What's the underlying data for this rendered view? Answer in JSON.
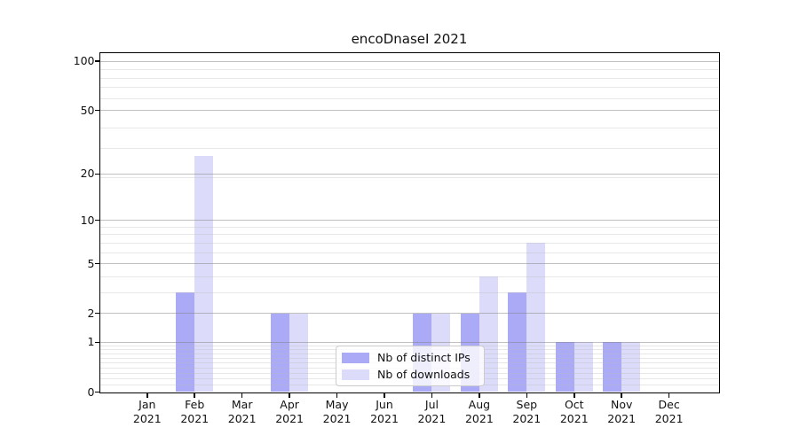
{
  "chart_data": {
    "type": "bar",
    "title": "encoDnaseI 2021",
    "categories": [
      "Jan 2021",
      "Feb 2021",
      "Mar 2021",
      "Apr 2021",
      "May 2021",
      "Jun 2021",
      "Jul 2021",
      "Aug 2021",
      "Sep 2021",
      "Oct 2021",
      "Nov 2021",
      "Dec 2021"
    ],
    "series": [
      {
        "name": "Nb of distinct IPs",
        "color": "#aaaaf6",
        "values": [
          0,
          3,
          0,
          2,
          0,
          0,
          2,
          2,
          3,
          1,
          1,
          0
        ]
      },
      {
        "name": "Nb of downloads",
        "color": "#dcdcfa",
        "values": [
          0,
          26,
          0,
          2,
          0,
          0,
          2,
          4,
          7,
          1,
          1,
          0
        ]
      }
    ],
    "xlabel": "",
    "ylabel": "",
    "yscale": "log10(value+1)",
    "ylim": [
      0,
      113
    ],
    "yticks": [
      100,
      50,
      20,
      10,
      5,
      2,
      1,
      0
    ],
    "major_gridlines": [
      1,
      2,
      5,
      10,
      20,
      50,
      100
    ],
    "minor_gridlines": [
      0.1,
      0.2,
      0.3,
      0.4,
      0.5,
      0.6,
      0.7,
      0.8,
      0.9,
      3,
      4,
      6,
      7,
      8,
      9,
      19,
      29,
      39,
      59,
      69,
      79,
      89
    ],
    "grid": true,
    "legend_position": "inside-bottom-center"
  }
}
